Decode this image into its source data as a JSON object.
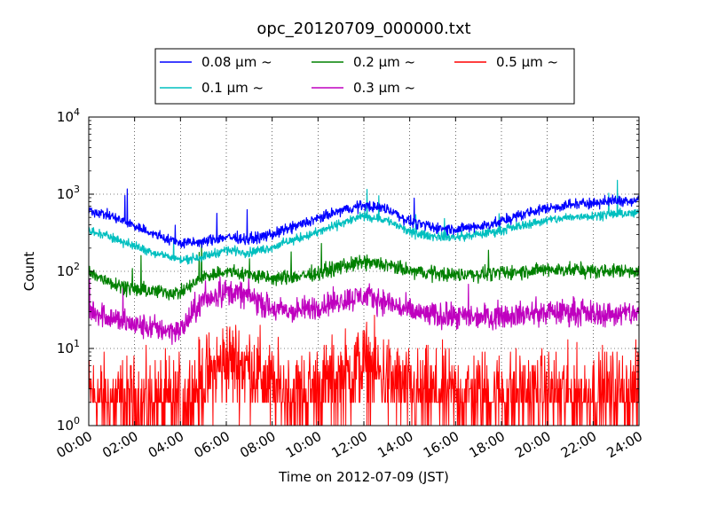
{
  "chart_data": {
    "type": "line",
    "title": "opc_20120709_000000.txt",
    "xlabel": "Time on 2012-07-09 (JST)",
    "ylabel": "Count",
    "x_unit": "hours",
    "xlim": [
      0,
      24
    ],
    "yscale": "log",
    "ylim": [
      1,
      10000
    ],
    "grid": true,
    "legend_position": "top-center",
    "x_ticks": [
      {
        "value": 0,
        "label": "00:00"
      },
      {
        "value": 2,
        "label": "02:00"
      },
      {
        "value": 4,
        "label": "04:00"
      },
      {
        "value": 6,
        "label": "06:00"
      },
      {
        "value": 8,
        "label": "08:00"
      },
      {
        "value": 10,
        "label": "10:00"
      },
      {
        "value": 12,
        "label": "12:00"
      },
      {
        "value": 14,
        "label": "14:00"
      },
      {
        "value": 16,
        "label": "16:00"
      },
      {
        "value": 18,
        "label": "18:00"
      },
      {
        "value": 20,
        "label": "20:00"
      },
      {
        "value": 22,
        "label": "22:00"
      },
      {
        "value": 24,
        "label": "24:00"
      }
    ],
    "y_ticks": [
      {
        "value": 1,
        "base": "10",
        "exp": "0"
      },
      {
        "value": 10,
        "base": "10",
        "exp": "1"
      },
      {
        "value": 100,
        "base": "10",
        "exp": "2"
      },
      {
        "value": 1000,
        "base": "10",
        "exp": "3"
      },
      {
        "value": 10000,
        "base": "10",
        "exp": "4"
      }
    ],
    "x": [
      0,
      1,
      2,
      3,
      4,
      5,
      6,
      7,
      8,
      9,
      10,
      11,
      12,
      13,
      14,
      15,
      16,
      17,
      18,
      19,
      20,
      21,
      22,
      23,
      24
    ],
    "series": [
      {
        "name": "0.08 μm ~",
        "color": "#0000ff",
        "noise": 0.06,
        "values": [
          630,
          510,
          390,
          290,
          230,
          240,
          280,
          260,
          300,
          380,
          480,
          610,
          720,
          650,
          440,
          370,
          350,
          380,
          440,
          560,
          660,
          730,
          780,
          820,
          840
        ]
      },
      {
        "name": "0.1 μm ~",
        "color": "#00bfbf",
        "noise": 0.05,
        "values": [
          330,
          280,
          210,
          170,
          140,
          155,
          190,
          175,
          205,
          260,
          320,
          420,
          520,
          460,
          320,
          285,
          275,
          300,
          340,
          400,
          460,
          500,
          530,
          555,
          565
        ]
      },
      {
        "name": "0.2 μm ~",
        "color": "#008000",
        "noise": 0.08,
        "values": [
          95,
          72,
          58,
          55,
          52,
          85,
          100,
          90,
          80,
          85,
          95,
          115,
          130,
          120,
          100,
          95,
          90,
          92,
          95,
          100,
          105,
          105,
          100,
          102,
          103
        ]
      },
      {
        "name": "0.3 μm ~",
        "color": "#bf00bf",
        "noise": 0.14,
        "values": [
          32,
          25,
          20,
          18,
          17,
          42,
          55,
          48,
          32,
          30,
          35,
          42,
          48,
          40,
          30,
          27,
          25,
          26,
          27,
          28,
          29,
          30,
          28,
          28,
          29
        ]
      },
      {
        "name": "0.5 μm ~",
        "color": "#ff0000",
        "noise": 0.35,
        "discrete": true,
        "values": [
          2.5,
          2,
          2,
          2,
          2,
          3.5,
          7,
          6,
          3,
          2.5,
          3,
          4,
          6,
          4,
          2.5,
          2.5,
          2.5,
          2.5,
          2.5,
          2.5,
          2.5,
          2.5,
          2.5,
          2.5,
          2.5
        ]
      }
    ]
  }
}
